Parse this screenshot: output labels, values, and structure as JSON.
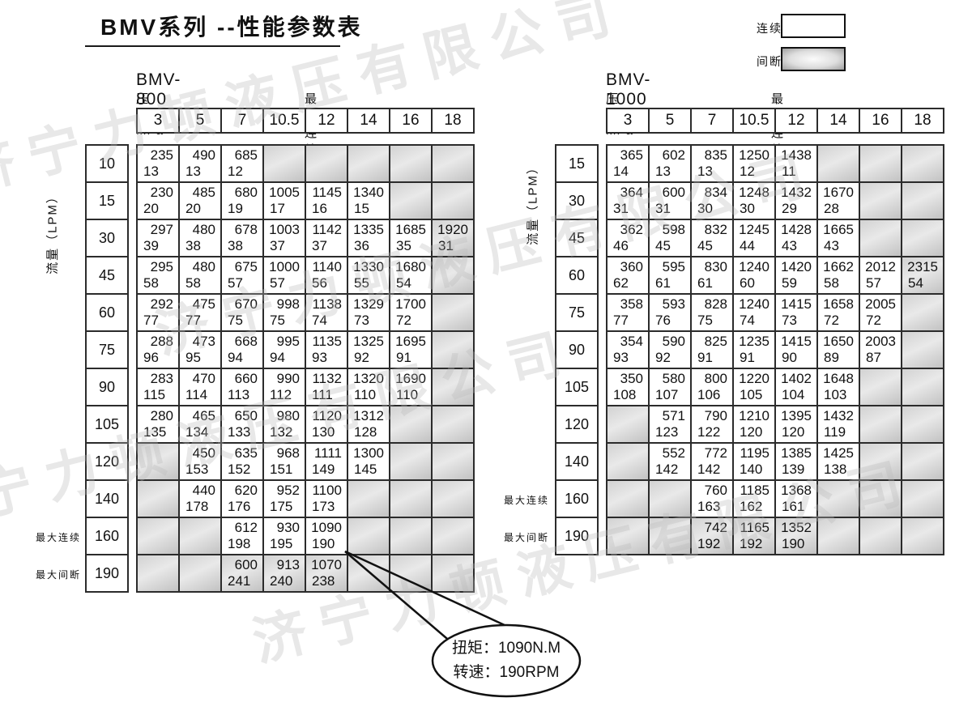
{
  "page_title": "BMV系列 --性能参数表",
  "legend": {
    "continuous": "连续",
    "intermittent": "间断"
  },
  "callout": {
    "torque": "扭矩：1090N.M",
    "speed": "转速：190RPM"
  },
  "watermark": "济宁力顿液压有限公司",
  "colors": {
    "border": "#2b2b2b",
    "gray_cell_dark": "#c2c2c2",
    "gray_cell_light": "#e9e9e9"
  },
  "tables": [
    {
      "id": "bmv800",
      "title": "BMV-800",
      "pressure_label": "压力：MPa",
      "max_label": "最大连续  最大间断",
      "flow_label": "流量（LPM）",
      "side_continuous": "最大连续",
      "side_intermittent": "最大间断",
      "pressures": [
        "3",
        "5",
        "7",
        "10.5",
        "12",
        "14",
        "16",
        "18"
      ],
      "rows": [
        {
          "flow": "10",
          "cells": [
            {
              "t": "235",
              "s": "13"
            },
            {
              "t": "490",
              "s": "13"
            },
            {
              "t": "685",
              "s": "12"
            },
            null,
            null,
            null,
            null,
            null
          ]
        },
        {
          "flow": "15",
          "cells": [
            {
              "t": "230",
              "s": "20"
            },
            {
              "t": "485",
              "s": "20"
            },
            {
              "t": "680",
              "s": "19"
            },
            {
              "t": "1005",
              "s": "17"
            },
            {
              "t": "1145",
              "s": "16"
            },
            {
              "t": "1340",
              "s": "15"
            },
            null,
            null
          ]
        },
        {
          "flow": "30",
          "cells": [
            {
              "t": "297",
              "s": "39"
            },
            {
              "t": "480",
              "s": "38"
            },
            {
              "t": "678",
              "s": "38"
            },
            {
              "t": "1003",
              "s": "37"
            },
            {
              "t": "1142",
              "s": "37"
            },
            {
              "t": "1335",
              "s": "36"
            },
            {
              "t": "1685",
              "s": "35"
            },
            {
              "t": "1920",
              "s": "31",
              "gray": true
            }
          ]
        },
        {
          "flow": "45",
          "cells": [
            {
              "t": "295",
              "s": "58"
            },
            {
              "t": "480",
              "s": "58"
            },
            {
              "t": "675",
              "s": "57"
            },
            {
              "t": "1000",
              "s": "57"
            },
            {
              "t": "1140",
              "s": "56"
            },
            {
              "t": "1330",
              "s": "55"
            },
            {
              "t": "1680",
              "s": "54"
            },
            null
          ]
        },
        {
          "flow": "60",
          "cells": [
            {
              "t": "292",
              "s": "77"
            },
            {
              "t": "475",
              "s": "77"
            },
            {
              "t": "670",
              "s": "75"
            },
            {
              "t": "998",
              "s": "75"
            },
            {
              "t": "1138",
              "s": "74"
            },
            {
              "t": "1329",
              "s": "73"
            },
            {
              "t": "1700",
              "s": "72"
            },
            null
          ]
        },
        {
          "flow": "75",
          "cells": [
            {
              "t": "288",
              "s": "96"
            },
            {
              "t": "473",
              "s": "95"
            },
            {
              "t": "668",
              "s": "94"
            },
            {
              "t": "995",
              "s": "94"
            },
            {
              "t": "1135",
              "s": "93"
            },
            {
              "t": "1325",
              "s": "92"
            },
            {
              "t": "1695",
              "s": "91"
            },
            null
          ]
        },
        {
          "flow": "90",
          "cells": [
            {
              "t": "283",
              "s": "115"
            },
            {
              "t": "470",
              "s": "114"
            },
            {
              "t": "660",
              "s": "113"
            },
            {
              "t": "990",
              "s": "112"
            },
            {
              "t": "1132",
              "s": "111"
            },
            {
              "t": "1320",
              "s": "110"
            },
            {
              "t": "1690",
              "s": "110"
            },
            null
          ]
        },
        {
          "flow": "105",
          "cells": [
            {
              "t": "280",
              "s": "135"
            },
            {
              "t": "465",
              "s": "134"
            },
            {
              "t": "650",
              "s": "133"
            },
            {
              "t": "980",
              "s": "132"
            },
            {
              "t": "1120",
              "s": "130"
            },
            {
              "t": "1312",
              "s": "128"
            },
            null,
            null
          ]
        },
        {
          "flow": "120",
          "cells": [
            null,
            {
              "t": "450",
              "s": "153"
            },
            {
              "t": "635",
              "s": "152"
            },
            {
              "t": "968",
              "s": "151"
            },
            {
              "t": "1111",
              "s": "149"
            },
            {
              "t": "1300",
              "s": "145"
            },
            null,
            null
          ]
        },
        {
          "flow": "140",
          "cells": [
            null,
            {
              "t": "440",
              "s": "178"
            },
            {
              "t": "620",
              "s": "176"
            },
            {
              "t": "952",
              "s": "175"
            },
            {
              "t": "1100",
              "s": "173"
            },
            null,
            null,
            null
          ]
        },
        {
          "flow": "160",
          "cells": [
            null,
            null,
            {
              "t": "612",
              "s": "198"
            },
            {
              "t": "930",
              "s": "195"
            },
            {
              "t": "1090",
              "s": "190"
            },
            null,
            null,
            null
          ]
        },
        {
          "flow": "190",
          "cells": [
            null,
            null,
            {
              "t": "600",
              "s": "241",
              "gray": true
            },
            {
              "t": "913",
              "s": "240",
              "gray": true
            },
            {
              "t": "1070",
              "s": "238",
              "gray": true
            },
            null,
            null,
            null
          ]
        }
      ]
    },
    {
      "id": "bmv1000",
      "title": "BMV-1000",
      "pressure_label": "压力：MPa",
      "max_label": "最大连续  最大间断",
      "flow_label": "流量（LPM）",
      "side_continuous": "最大连续",
      "side_intermittent": "最大间断",
      "pressures": [
        "3",
        "5",
        "7",
        "10.5",
        "12",
        "14",
        "16",
        "18"
      ],
      "rows": [
        {
          "flow": "15",
          "cells": [
            {
              "t": "365",
              "s": "14"
            },
            {
              "t": "602",
              "s": "13"
            },
            {
              "t": "835",
              "s": "13"
            },
            {
              "t": "1250",
              "s": "12"
            },
            {
              "t": "1438",
              "s": "11"
            },
            null,
            null,
            null
          ]
        },
        {
          "flow": "30",
          "cells": [
            {
              "t": "364",
              "s": "31"
            },
            {
              "t": "600",
              "s": "31"
            },
            {
              "t": "834",
              "s": "30"
            },
            {
              "t": "1248",
              "s": "30"
            },
            {
              "t": "1432",
              "s": "29"
            },
            {
              "t": "1670",
              "s": "28"
            },
            null,
            null
          ]
        },
        {
          "flow": "45",
          "cells": [
            {
              "t": "362",
              "s": "46"
            },
            {
              "t": "598",
              "s": "45"
            },
            {
              "t": "832",
              "s": "45"
            },
            {
              "t": "1245",
              "s": "44"
            },
            {
              "t": "1428",
              "s": "43"
            },
            {
              "t": "1665",
              "s": "43"
            },
            null,
            null
          ]
        },
        {
          "flow": "60",
          "cells": [
            {
              "t": "360",
              "s": "62"
            },
            {
              "t": "595",
              "s": "61"
            },
            {
              "t": "830",
              "s": "61"
            },
            {
              "t": "1240",
              "s": "60"
            },
            {
              "t": "1420",
              "s": "59"
            },
            {
              "t": "1662",
              "s": "58"
            },
            {
              "t": "2012",
              "s": "57"
            },
            {
              "t": "2315",
              "s": "54",
              "gray": true
            }
          ]
        },
        {
          "flow": "75",
          "cells": [
            {
              "t": "358",
              "s": "77"
            },
            {
              "t": "593",
              "s": "76"
            },
            {
              "t": "828",
              "s": "75"
            },
            {
              "t": "1240",
              "s": "74"
            },
            {
              "t": "1415",
              "s": "73"
            },
            {
              "t": "1658",
              "s": "72"
            },
            {
              "t": "2005",
              "s": "72"
            },
            null
          ]
        },
        {
          "flow": "90",
          "cells": [
            {
              "t": "354",
              "s": "93"
            },
            {
              "t": "590",
              "s": "92"
            },
            {
              "t": "825",
              "s": "91"
            },
            {
              "t": "1235",
              "s": "91"
            },
            {
              "t": "1415",
              "s": "90"
            },
            {
              "t": "1650",
              "s": "89"
            },
            {
              "t": "2003",
              "s": "87"
            },
            null
          ]
        },
        {
          "flow": "105",
          "cells": [
            {
              "t": "350",
              "s": "108"
            },
            {
              "t": "580",
              "s": "107"
            },
            {
              "t": "800",
              "s": "106"
            },
            {
              "t": "1220",
              "s": "105"
            },
            {
              "t": "1402",
              "s": "104"
            },
            {
              "t": "1648",
              "s": "103"
            },
            null,
            null
          ]
        },
        {
          "flow": "120",
          "cells": [
            null,
            {
              "t": "571",
              "s": "123"
            },
            {
              "t": "790",
              "s": "122"
            },
            {
              "t": "1210",
              "s": "120"
            },
            {
              "t": "1395",
              "s": "120"
            },
            {
              "t": "1432",
              "s": "119"
            },
            null,
            null
          ]
        },
        {
          "flow": "140",
          "cells": [
            null,
            {
              "t": "552",
              "s": "142"
            },
            {
              "t": "772",
              "s": "142"
            },
            {
              "t": "1195",
              "s": "140"
            },
            {
              "t": "1385",
              "s": "139"
            },
            {
              "t": "1425",
              "s": "138"
            },
            null,
            null
          ]
        },
        {
          "flow": "160",
          "cells": [
            null,
            null,
            {
              "t": "760",
              "s": "163"
            },
            {
              "t": "1185",
              "s": "162"
            },
            {
              "t": "1368",
              "s": "161"
            },
            null,
            null,
            null
          ]
        },
        {
          "flow": "190",
          "cells": [
            null,
            null,
            {
              "t": "742",
              "s": "192",
              "gray": true
            },
            {
              "t": "1165",
              "s": "192",
              "gray": true
            },
            {
              "t": "1352",
              "s": "190",
              "gray": true
            },
            null,
            null,
            null
          ]
        }
      ]
    }
  ]
}
